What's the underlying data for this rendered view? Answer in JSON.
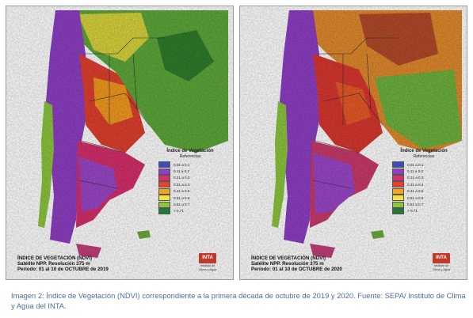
{
  "maps": [
    {
      "id": "2019",
      "title": "ÍNDICE DE VEGETACIÓN (NDVI)",
      "satellite": "Satélite NPP. Resolución 375 m",
      "period": "Período: 01 al 10 de OCTUBRE de 2019"
    },
    {
      "id": "2020",
      "title": "ÍNDICE DE VEGETACIÓN (NDVI)",
      "satellite": "Satélite NPP. Resolución 375 m",
      "period": "Período: 01 al 10 de OCTUBRE de 2020"
    }
  ],
  "legend": {
    "title": "Índice de Vegetación",
    "subtitle": "Referencias",
    "items": [
      {
        "label": "0.01 a 0.1",
        "color": "#3b4cc0"
      },
      {
        "label": "0.11 a 0.2",
        "color": "#8e3fc4"
      },
      {
        "label": "0.21 a 0.3",
        "color": "#d62f6b"
      },
      {
        "label": "0.31 a 0.4",
        "color": "#e8402a"
      },
      {
        "label": "0.41 a 0.5",
        "color": "#f7a21b"
      },
      {
        "label": "0.51 a 0.6",
        "color": "#f2e33a"
      },
      {
        "label": "0.61 a 0.7",
        "color": "#8cc63e"
      },
      {
        "label": "> 0.71",
        "color": "#1f7a33"
      }
    ]
  },
  "logo": {
    "text": "INTA",
    "sub": "Instituto de Clima y Agua"
  },
  "caption": "Imagen 2: Índice de Vegetación (NDVI) correspondiente a la primera década de octubre de 2019 y 2020. Fuente: SEPA/ Instituto de Clima y Agua del INTA.",
  "colors": {
    "sea": "#ffffff",
    "caption": "#4a6fa5",
    "border": "#333333"
  }
}
